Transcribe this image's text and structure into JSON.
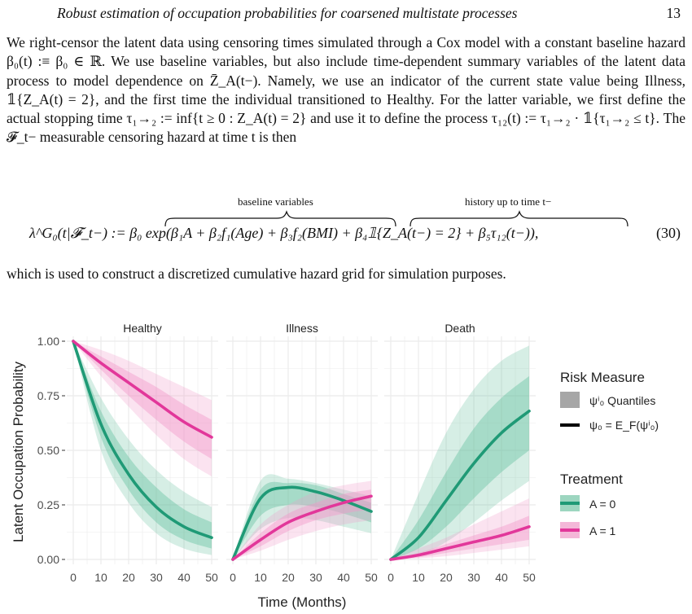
{
  "header": {
    "running_title": "Robust estimation of occupation probabilities for coarsened multistate processes",
    "page_number": "13"
  },
  "paragraph1": {
    "text": "We right-censor the latent data using censoring times simulated through a Cox model with a constant baseline hazard β₀(t) :≡ β₀ ∈ ℝ. We use baseline variables, but also include time-dependent summary variables of the latent data process to model dependence on Z̄_A(t−). Namely, we use an indicator of the current state value being Illness, 𝟙{Z_A(t) = 2}, and the first time the individual transitioned to Healthy. For the latter variable, we first define the actual stopping time τ₁→₂ := inf{t ≥ 0 : Z_A(t) = 2} and use it to define the process τ₁₂(t) := τ₁→₂ · 𝟙{τ₁→₂ ≤ t}. The 𝓕_t− measurable censoring hazard at time t is then"
  },
  "equation": {
    "brace_label_1": "baseline variables",
    "brace_label_2": "history up to time t−",
    "body": "λ^G₀(t|𝓕_t−) := β₀ exp(β₁A + β₂f₁(Age) + β₃f₂(BMI) + β₄𝟙{Z_A(t−) = 2} + β₅τ₁₂(t−)),",
    "number": "(30)"
  },
  "paragraph2": {
    "text": "which is used to construct a discretized cumulative hazard grid for simulation purposes."
  },
  "figure": {
    "chart_data": {
      "type": "line",
      "x_label": "Time (Months)",
      "y_label": "Latent Occupation Probability",
      "xlim": [
        0,
        50
      ],
      "ylim": [
        0,
        1
      ],
      "x_ticks": [
        "0",
        "10",
        "20",
        "30",
        "40",
        "50"
      ],
      "y_ticks": [
        "0.00",
        "0.25",
        "0.50",
        "0.75",
        "1.00"
      ],
      "panels": [
        "Healthy",
        "Illness",
        "Death"
      ],
      "series": [
        {
          "name": "A = 0",
          "color": "#1f9a76",
          "band_color": "#6cc3a3",
          "values": {
            "Healthy": [
              1.0,
              0.62,
              0.39,
              0.24,
              0.15,
              0.1
            ],
            "Illness": [
              0.0,
              0.28,
              0.33,
              0.31,
              0.27,
              0.22
            ],
            "Death": [
              0.0,
              0.1,
              0.27,
              0.44,
              0.58,
              0.68
            ]
          },
          "bands": {
            "Healthy": {
              "outer_lo": [
                1.0,
                0.5,
                0.26,
                0.12,
                0.05,
                0.02
              ],
              "outer_hi": [
                1.0,
                0.74,
                0.55,
                0.41,
                0.31,
                0.24
              ],
              "inner_lo": [
                1.0,
                0.56,
                0.32,
                0.17,
                0.09,
                0.05
              ],
              "inner_hi": [
                1.0,
                0.68,
                0.47,
                0.33,
                0.23,
                0.17
              ]
            },
            "Illness": {
              "outer_lo": [
                0.0,
                0.14,
                0.19,
                0.18,
                0.15,
                0.12
              ],
              "outer_hi": [
                0.0,
                0.36,
                0.37,
                0.35,
                0.32,
                0.29
              ],
              "inner_lo": [
                0.0,
                0.2,
                0.25,
                0.24,
                0.21,
                0.17
              ],
              "inner_hi": [
                0.0,
                0.32,
                0.35,
                0.34,
                0.3,
                0.26
              ]
            },
            "Death": {
              "outer_lo": [
                0.0,
                0.02,
                0.08,
                0.17,
                0.27,
                0.36
              ],
              "outer_hi": [
                0.0,
                0.3,
                0.58,
                0.78,
                0.91,
                0.98
              ],
              "inner_lo": [
                0.0,
                0.05,
                0.15,
                0.28,
                0.4,
                0.5
              ],
              "inner_hi": [
                0.0,
                0.18,
                0.4,
                0.6,
                0.74,
                0.84
              ]
            }
          }
        },
        {
          "name": "A = 1",
          "color": "#e2379a",
          "band_color": "#f19ac9",
          "values": {
            "Healthy": [
              1.0,
              0.9,
              0.81,
              0.72,
              0.63,
              0.56
            ],
            "Illness": [
              0.0,
              0.09,
              0.17,
              0.22,
              0.26,
              0.29
            ],
            "Death": [
              0.0,
              0.02,
              0.05,
              0.08,
              0.11,
              0.15
            ]
          },
          "bands": {
            "Healthy": {
              "outer_lo": [
                1.0,
                0.84,
                0.7,
                0.57,
                0.46,
                0.38
              ],
              "outer_hi": [
                1.0,
                0.96,
                0.91,
                0.85,
                0.79,
                0.73
              ],
              "inner_lo": [
                1.0,
                0.87,
                0.75,
                0.64,
                0.54,
                0.46
              ],
              "inner_hi": [
                1.0,
                0.93,
                0.86,
                0.79,
                0.71,
                0.64
              ]
            },
            "Illness": {
              "outer_lo": [
                0.0,
                0.04,
                0.09,
                0.13,
                0.16,
                0.18
              ],
              "outer_hi": [
                0.0,
                0.16,
                0.25,
                0.31,
                0.34,
                0.36
              ],
              "inner_lo": [
                0.0,
                0.06,
                0.13,
                0.18,
                0.21,
                0.23
              ],
              "inner_hi": [
                0.0,
                0.12,
                0.21,
                0.26,
                0.3,
                0.32
              ]
            },
            "Death": {
              "outer_lo": [
                0.0,
                0.005,
                0.015,
                0.03,
                0.045,
                0.06
              ],
              "outer_hi": [
                0.0,
                0.05,
                0.1,
                0.16,
                0.22,
                0.28
              ],
              "inner_lo": [
                0.0,
                0.01,
                0.03,
                0.05,
                0.07,
                0.09
              ],
              "inner_hi": [
                0.0,
                0.03,
                0.07,
                0.11,
                0.15,
                0.2
              ]
            }
          }
        }
      ],
      "legend": {
        "position": "right",
        "risk_title": "Risk Measure",
        "risk_quantiles": "ψⁱ₀ Quantiles",
        "risk_mean": "ψ₀ = E_F(ψⁱ₀)",
        "treatment_title": "Treatment",
        "treatment_a0": "A = 0",
        "treatment_a1": "A = 1"
      },
      "grid": true,
      "panel_background": "#ffffff",
      "grid_color": "#ebebeb"
    }
  }
}
